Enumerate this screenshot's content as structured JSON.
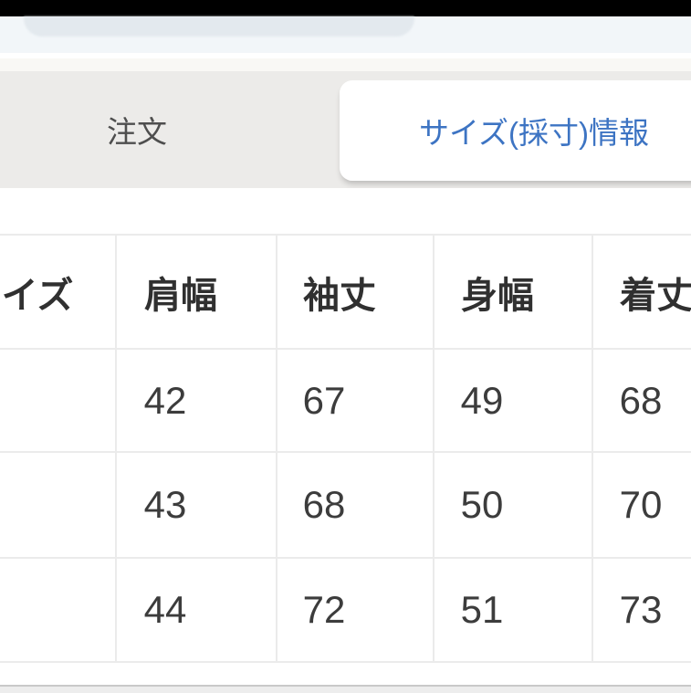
{
  "status_bar": {
    "color": "#000000"
  },
  "top_banner": {
    "strip_color": "#f2f6f9",
    "overlay_card_color": "#e3e9ee"
  },
  "tabs": {
    "bar_color": "#ecebe9",
    "active_text_color": "#3d74c3",
    "inactive_text_color": "#4e4e4e",
    "items": [
      {
        "label": "注文",
        "active": false
      },
      {
        "label": "サイズ(採寸)情報",
        "active": true
      }
    ]
  },
  "size_table": {
    "grid_color": "#ebebeb",
    "header_text_color": "#303030",
    "cell_text_color": "#3c3c3c",
    "columns": [
      "サイズ",
      "肩幅",
      "袖丈",
      "身幅",
      "着丈"
    ],
    "rows": [
      [
        "",
        "42",
        "67",
        "49",
        "68"
      ],
      [
        "",
        "43",
        "68",
        "50",
        "70"
      ],
      [
        "",
        "44",
        "72",
        "51",
        "73"
      ]
    ]
  }
}
